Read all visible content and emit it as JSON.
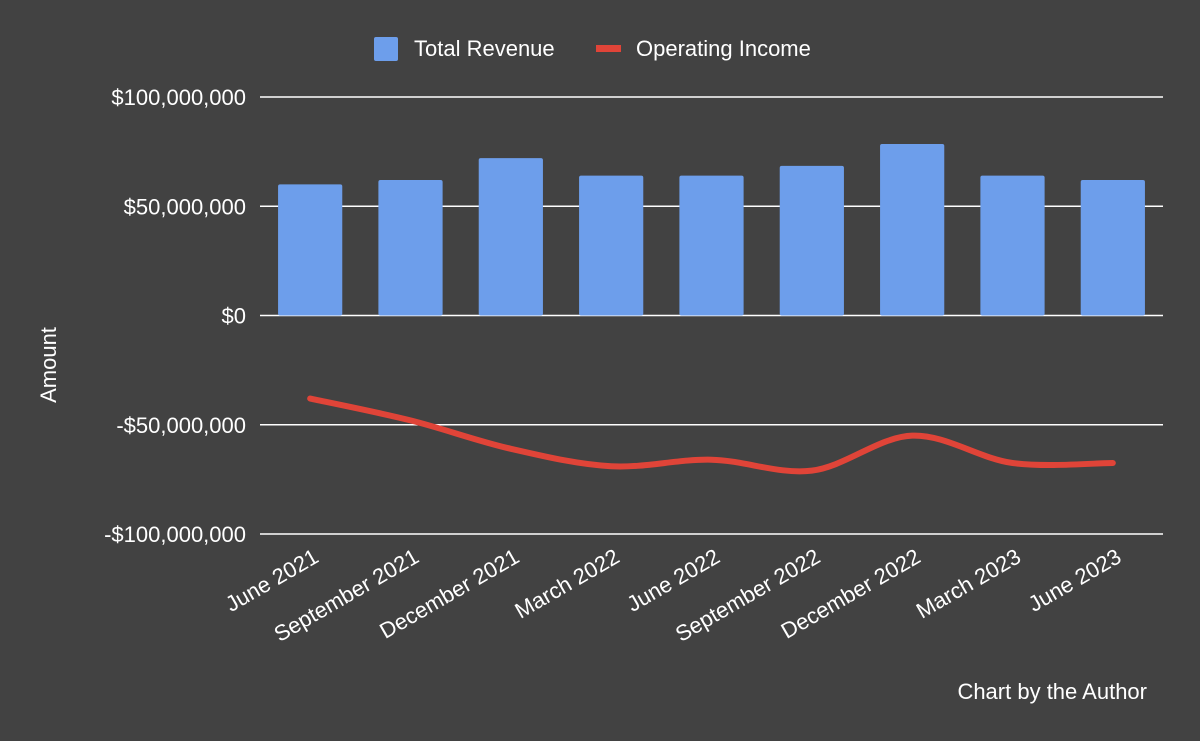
{
  "chart_data": {
    "type": "bar",
    "title": "",
    "xlabel": "",
    "ylabel": "Amount",
    "ylim": [
      -100000000,
      100000000
    ],
    "yticks": [
      100000000,
      50000000,
      0,
      -50000000,
      -100000000
    ],
    "ytick_labels": [
      "$100,000,000",
      "$50,000,000",
      "$0",
      "-$50,000,000",
      "-$100,000,000"
    ],
    "grid": true,
    "legend": "top",
    "categories": [
      "June 2021",
      "September 2021",
      "December 2021",
      "March 2022",
      "June 2022",
      "September 2022",
      "December 2022",
      "March 2023",
      "June 2023"
    ],
    "series": [
      {
        "name": "Total Revenue",
        "type": "bar",
        "color": "#6d9eeb",
        "values": [
          60000000,
          62000000,
          72000000,
          64000000,
          64000000,
          68500000,
          78500000,
          64000000,
          62000000
        ]
      },
      {
        "name": "Operating Income",
        "type": "line",
        "color": "#e04438",
        "values": [
          -38000000,
          -48000000,
          -61000000,
          -69000000,
          -66000000,
          -71000000,
          -55000000,
          -67500000,
          -67500000
        ]
      }
    ],
    "annotation": "Chart by the Author"
  }
}
